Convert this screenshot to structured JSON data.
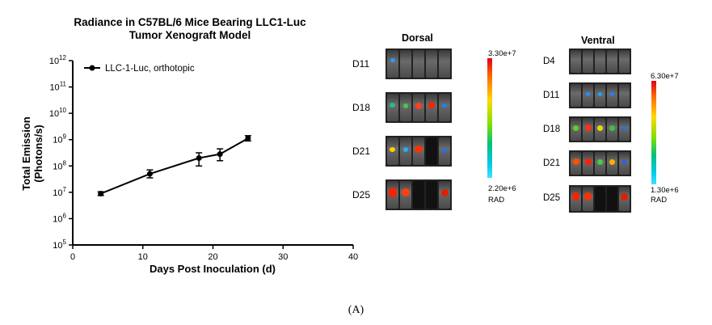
{
  "chart_data": {
    "type": "line",
    "title_lines": [
      "Radiance in C57BL/6 Mice Bearing LLC1-Luc",
      "Tumor Xenograft Model"
    ],
    "xlabel": "Days Post Inoculation (d)",
    "ylabel_lines": [
      "Total Emission",
      "(Photons/s)"
    ],
    "xlim": [
      0,
      40
    ],
    "x_ticks": [
      "0",
      "10",
      "20",
      "30",
      "40"
    ],
    "yscale": "log",
    "ylim_exp": [
      5,
      12
    ],
    "y_tick_exps": [
      "5",
      "6",
      "7",
      "8",
      "9",
      "10",
      "11",
      "12"
    ],
    "y_tick_base": "10",
    "series": [
      {
        "name": "LLC-1-Luc,  orthotopic",
        "x": [
          4,
          11,
          18,
          21,
          25
        ],
        "y_log10": [
          6.95,
          7.7,
          8.3,
          8.45,
          9.05
        ],
        "err_low_log10": [
          6.88,
          7.55,
          8.0,
          8.2,
          8.95
        ],
        "err_high_log10": [
          7.02,
          7.85,
          8.5,
          8.65,
          9.15
        ]
      }
    ]
  },
  "dorsal": {
    "title": "Dorsal",
    "days": [
      "D11",
      "D18",
      "D21",
      "D25"
    ],
    "scale_max": "3.30e+7",
    "scale_min": "2.20e+6",
    "unit": "RAD"
  },
  "ventral": {
    "title": "Ventral",
    "days": [
      "D4",
      "D11",
      "D18",
      "D21",
      "D25"
    ],
    "scale_max": "6.30e+7",
    "scale_min": "1.30e+6",
    "unit": "RAD"
  },
  "caption": "(A)",
  "colors": {
    "line": "#000000",
    "axis": "#000000"
  }
}
